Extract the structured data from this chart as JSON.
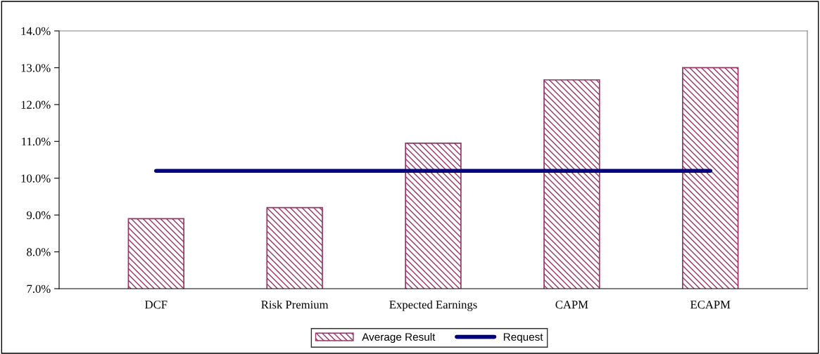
{
  "chart_data": {
    "type": "bar",
    "categories": [
      "DCF",
      "Risk Premium",
      "Expected Earnings",
      "CAPM",
      "ECAPM"
    ],
    "series": [
      {
        "name": "Average Result",
        "color": "#993366",
        "values": [
          8.9,
          9.2,
          10.95,
          12.67,
          13.0
        ]
      },
      {
        "name": "Request",
        "type": "line",
        "color": "#000080",
        "values": [
          10.2,
          10.2,
          10.2,
          10.2,
          10.2
        ]
      }
    ],
    "ylim": [
      7,
      14
    ],
    "yticks": [
      {
        "value": 7,
        "label": "7.0%"
      },
      {
        "value": 8,
        "label": "8.0%"
      },
      {
        "value": 9,
        "label": "9.0%"
      },
      {
        "value": 10,
        "label": "10.0%"
      },
      {
        "value": 11,
        "label": "11.0%"
      },
      {
        "value": 12,
        "label": "12.0%"
      },
      {
        "value": 13,
        "label": "13.0%"
      },
      {
        "value": 14,
        "label": "14.0%"
      }
    ],
    "grid": false,
    "legend": "bottom",
    "marker": "none",
    "line_style": "solid"
  }
}
